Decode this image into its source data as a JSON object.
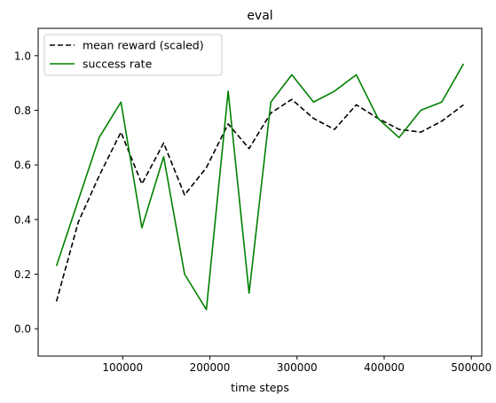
{
  "chart_data": {
    "type": "line",
    "title": "eval",
    "xlabel": "time steps",
    "ylabel": "",
    "xlim": [
      3000,
      512000
    ],
    "ylim": [
      -0.1,
      1.1
    ],
    "xticks": [
      100000,
      200000,
      300000,
      400000,
      500000
    ],
    "xtick_labels": [
      "100000",
      "200000",
      "300000",
      "400000",
      "500000"
    ],
    "yticks": [
      0.0,
      0.2,
      0.4,
      0.6,
      0.8,
      1.0
    ],
    "ytick_labels": [
      "0.0",
      "0.2",
      "0.4",
      "0.6",
      "0.8",
      "1.0"
    ],
    "grid": false,
    "legend_position": "top-left",
    "x": [
      24000,
      49000,
      73000,
      98000,
      122000,
      147000,
      171000,
      196000,
      221000,
      245000,
      270000,
      294000,
      319000,
      343000,
      368000,
      393000,
      417000,
      442000,
      466000,
      491000
    ],
    "series": [
      {
        "name": "mean reward (scaled)",
        "color": "#000000",
        "dash": "dashed",
        "values": [
          0.1,
          0.39,
          0.56,
          0.72,
          0.53,
          0.68,
          0.49,
          0.59,
          0.75,
          0.66,
          0.79,
          0.84,
          0.77,
          0.73,
          0.82,
          0.77,
          0.73,
          0.72,
          0.76,
          0.82
        ]
      },
      {
        "name": "success rate",
        "color": "#008000",
        "dash": "solid",
        "values": [
          0.23,
          0.47,
          0.7,
          0.83,
          0.37,
          0.63,
          0.2,
          0.07,
          0.87,
          0.13,
          0.83,
          0.93,
          0.83,
          0.87,
          0.93,
          0.77,
          0.7,
          0.8,
          0.83,
          0.97
        ]
      }
    ]
  }
}
